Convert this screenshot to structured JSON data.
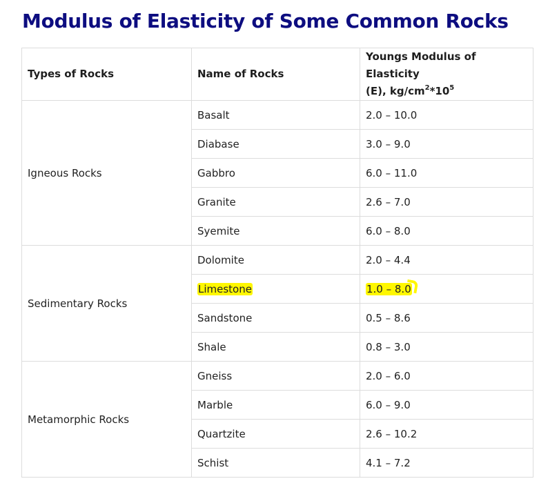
{
  "title": "Modulus of Elasticity of Some Common Rocks",
  "table": {
    "headers": {
      "type": "Types of Rocks",
      "name": "Name of Rocks",
      "modulus_line1": "Youngs Modulus of Elasticity",
      "modulus_line2_prefix": "(E), kg/cm",
      "modulus_sup1": "2",
      "modulus_mid": "*10",
      "modulus_sup2": "5"
    },
    "groups": [
      {
        "type": "Igneous Rocks",
        "rows": [
          {
            "name": "Basalt",
            "value": "2.0 – 10.0"
          },
          {
            "name": "Diabase",
            "value": "3.0 – 9.0"
          },
          {
            "name": "Gabbro",
            "value": "6.0 – 11.0"
          },
          {
            "name": "Granite",
            "value": "2.6 – 7.0"
          },
          {
            "name": "Syemite",
            "value": "6.0 – 8.0"
          }
        ]
      },
      {
        "type": "Sedimentary Rocks",
        "rows": [
          {
            "name": "Dolomite",
            "value": "2.0 – 4.4"
          },
          {
            "name": "Limestone",
            "value": "1.0 – 8.0",
            "highlighted": true
          },
          {
            "name": "Sandstone",
            "value": "0.5 – 8.6"
          },
          {
            "name": "Shale",
            "value": "0.8 – 3.0"
          }
        ]
      },
      {
        "type": "Metamorphic Rocks",
        "rows": [
          {
            "name": "Gneiss",
            "value": "2.0 – 6.0"
          },
          {
            "name": "Marble",
            "value": "6.0 – 9.0"
          },
          {
            "name": "Quartzite",
            "value": "2.6 – 10.2"
          },
          {
            "name": "Schist",
            "value": "4.1 – 7.2"
          }
        ]
      }
    ],
    "highlight_color": "#fff700"
  }
}
